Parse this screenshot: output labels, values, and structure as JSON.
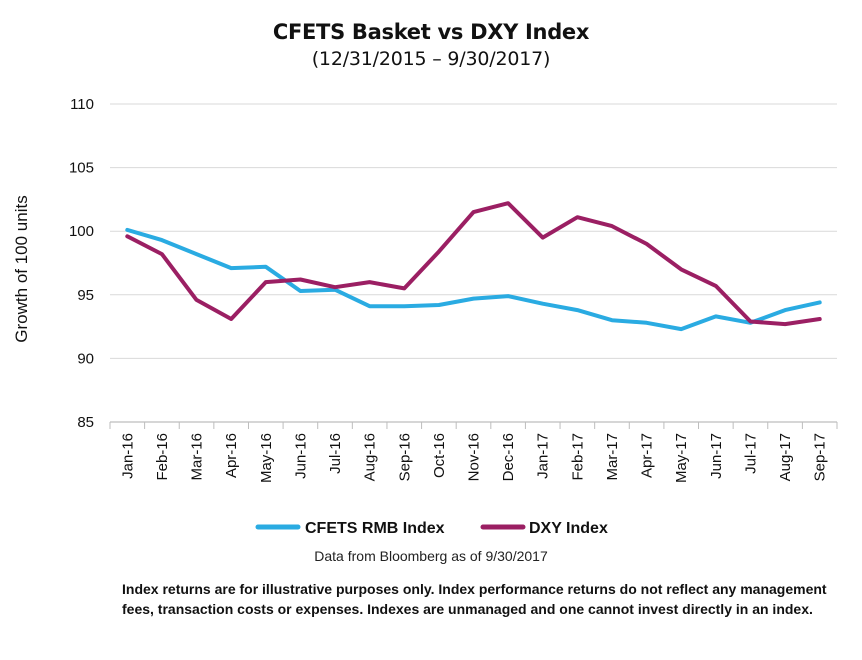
{
  "chart_data": {
    "type": "line",
    "title": "CFETS Basket vs DXY Index",
    "subtitle": "(12/31/2015 – 9/30/2017)",
    "ylabel": "Growth of 100 units",
    "xlabel": "",
    "ylim": [
      85,
      110
    ],
    "yticks": [
      85,
      90,
      95,
      100,
      105,
      110
    ],
    "grid": true,
    "legend_position": "bottom",
    "categories": [
      "Jan-16",
      "Feb-16",
      "Mar-16",
      "Apr-16",
      "May-16",
      "Jun-16",
      "Jul-16",
      "Aug-16",
      "Sep-16",
      "Oct-16",
      "Nov-16",
      "Dec-16",
      "Jan-17",
      "Feb-17",
      "Mar-17",
      "Apr-17",
      "May-17",
      "Jun-17",
      "Jul-17",
      "Aug-17",
      "Sep-17"
    ],
    "series": [
      {
        "name": "CFETS RMB Index",
        "color": "#2AABE2",
        "values": [
          100.1,
          99.3,
          98.2,
          97.1,
          97.2,
          95.3,
          95.4,
          94.1,
          94.1,
          94.2,
          94.7,
          94.9,
          94.3,
          93.8,
          93.0,
          92.8,
          92.3,
          93.3,
          92.8,
          93.8,
          94.4
        ]
      },
      {
        "name": "DXY Index",
        "color": "#9B1F63",
        "values": [
          99.6,
          98.2,
          94.6,
          93.1,
          96.0,
          96.2,
          95.6,
          96.0,
          95.5,
          98.4,
          101.5,
          102.2,
          99.5,
          101.1,
          100.4,
          99.0,
          97.0,
          95.7,
          92.9,
          92.7,
          93.1
        ]
      }
    ]
  },
  "note": "Data from Bloomberg as of 9/30/2017",
  "disclaimer": "Index returns are for illustrative purposes only. Index performance returns do not reflect any management fees, transaction costs or expenses. Indexes are unmanaged and one cannot invest directly in an index."
}
